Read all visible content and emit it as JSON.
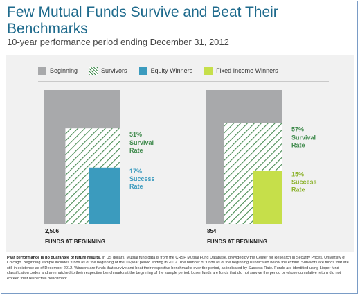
{
  "title": "Few Mutual Funds Survive and Beat Their Benchmarks",
  "subtitle": "10-year performance period ending December 31, 2012",
  "legend": [
    {
      "label": "Beginning",
      "key": "beginning",
      "color": "#a8a9ab"
    },
    {
      "label": "Survivors",
      "key": "survivors",
      "color": "#3f8a4c"
    },
    {
      "label": "Equity Winners",
      "key": "equity",
      "color": "#3b9bbe"
    },
    {
      "label": "Fixed Income Winners",
      "key": "fixed",
      "color": "#c6df4a"
    }
  ],
  "chart_data": {
    "type": "area",
    "panels": [
      {
        "beginning_count": "2,506",
        "beginning_caption": "FUNDS AT BEGINNING",
        "survival_rate": 51,
        "survival_pct_label": "51%",
        "survival_text": "Survival Rate",
        "success_rate": 17,
        "success_pct_label": "17%",
        "success_text": "Success Rate",
        "winner_color": "#3b9bbe",
        "label_color": "#3f8a4c",
        "success_label_color": "#3b9bbe"
      },
      {
        "beginning_count": "854",
        "beginning_caption": "FUNDS AT BEGINNING",
        "survival_rate": 57,
        "survival_pct_label": "57%",
        "survival_text": "Survival Rate",
        "success_rate": 15,
        "success_pct_label": "15%",
        "success_text": "Success Rate",
        "winner_color": "#c6df4a",
        "label_color": "#3f8a4c",
        "success_label_color": "#8db32e"
      }
    ]
  },
  "footnote": {
    "bold": "Past performance is no guarantee of future results.",
    "text": "In US dollars. Mutual fund data is from the CRSP Mutual Fund Database, provided by the Center for Research in Security Prices, University of Chicago. Beginning sample includes funds as of the beginning of the 10-year period ending in 2012. The number of funds as of the beginning is indicated below the exhibit. Survivors are funds that are still in existence as of December 2012. Winners are funds that survive and beat their respective benchmarks over the period, as indicated by Success Rate. Funds are identified using Lipper fund classification codes and are matched to their respective benchmarks at the beginning of the sample period. Loser funds are funds that did not survive the period or whose cumulative return did not exceed their respective benchmark."
  }
}
